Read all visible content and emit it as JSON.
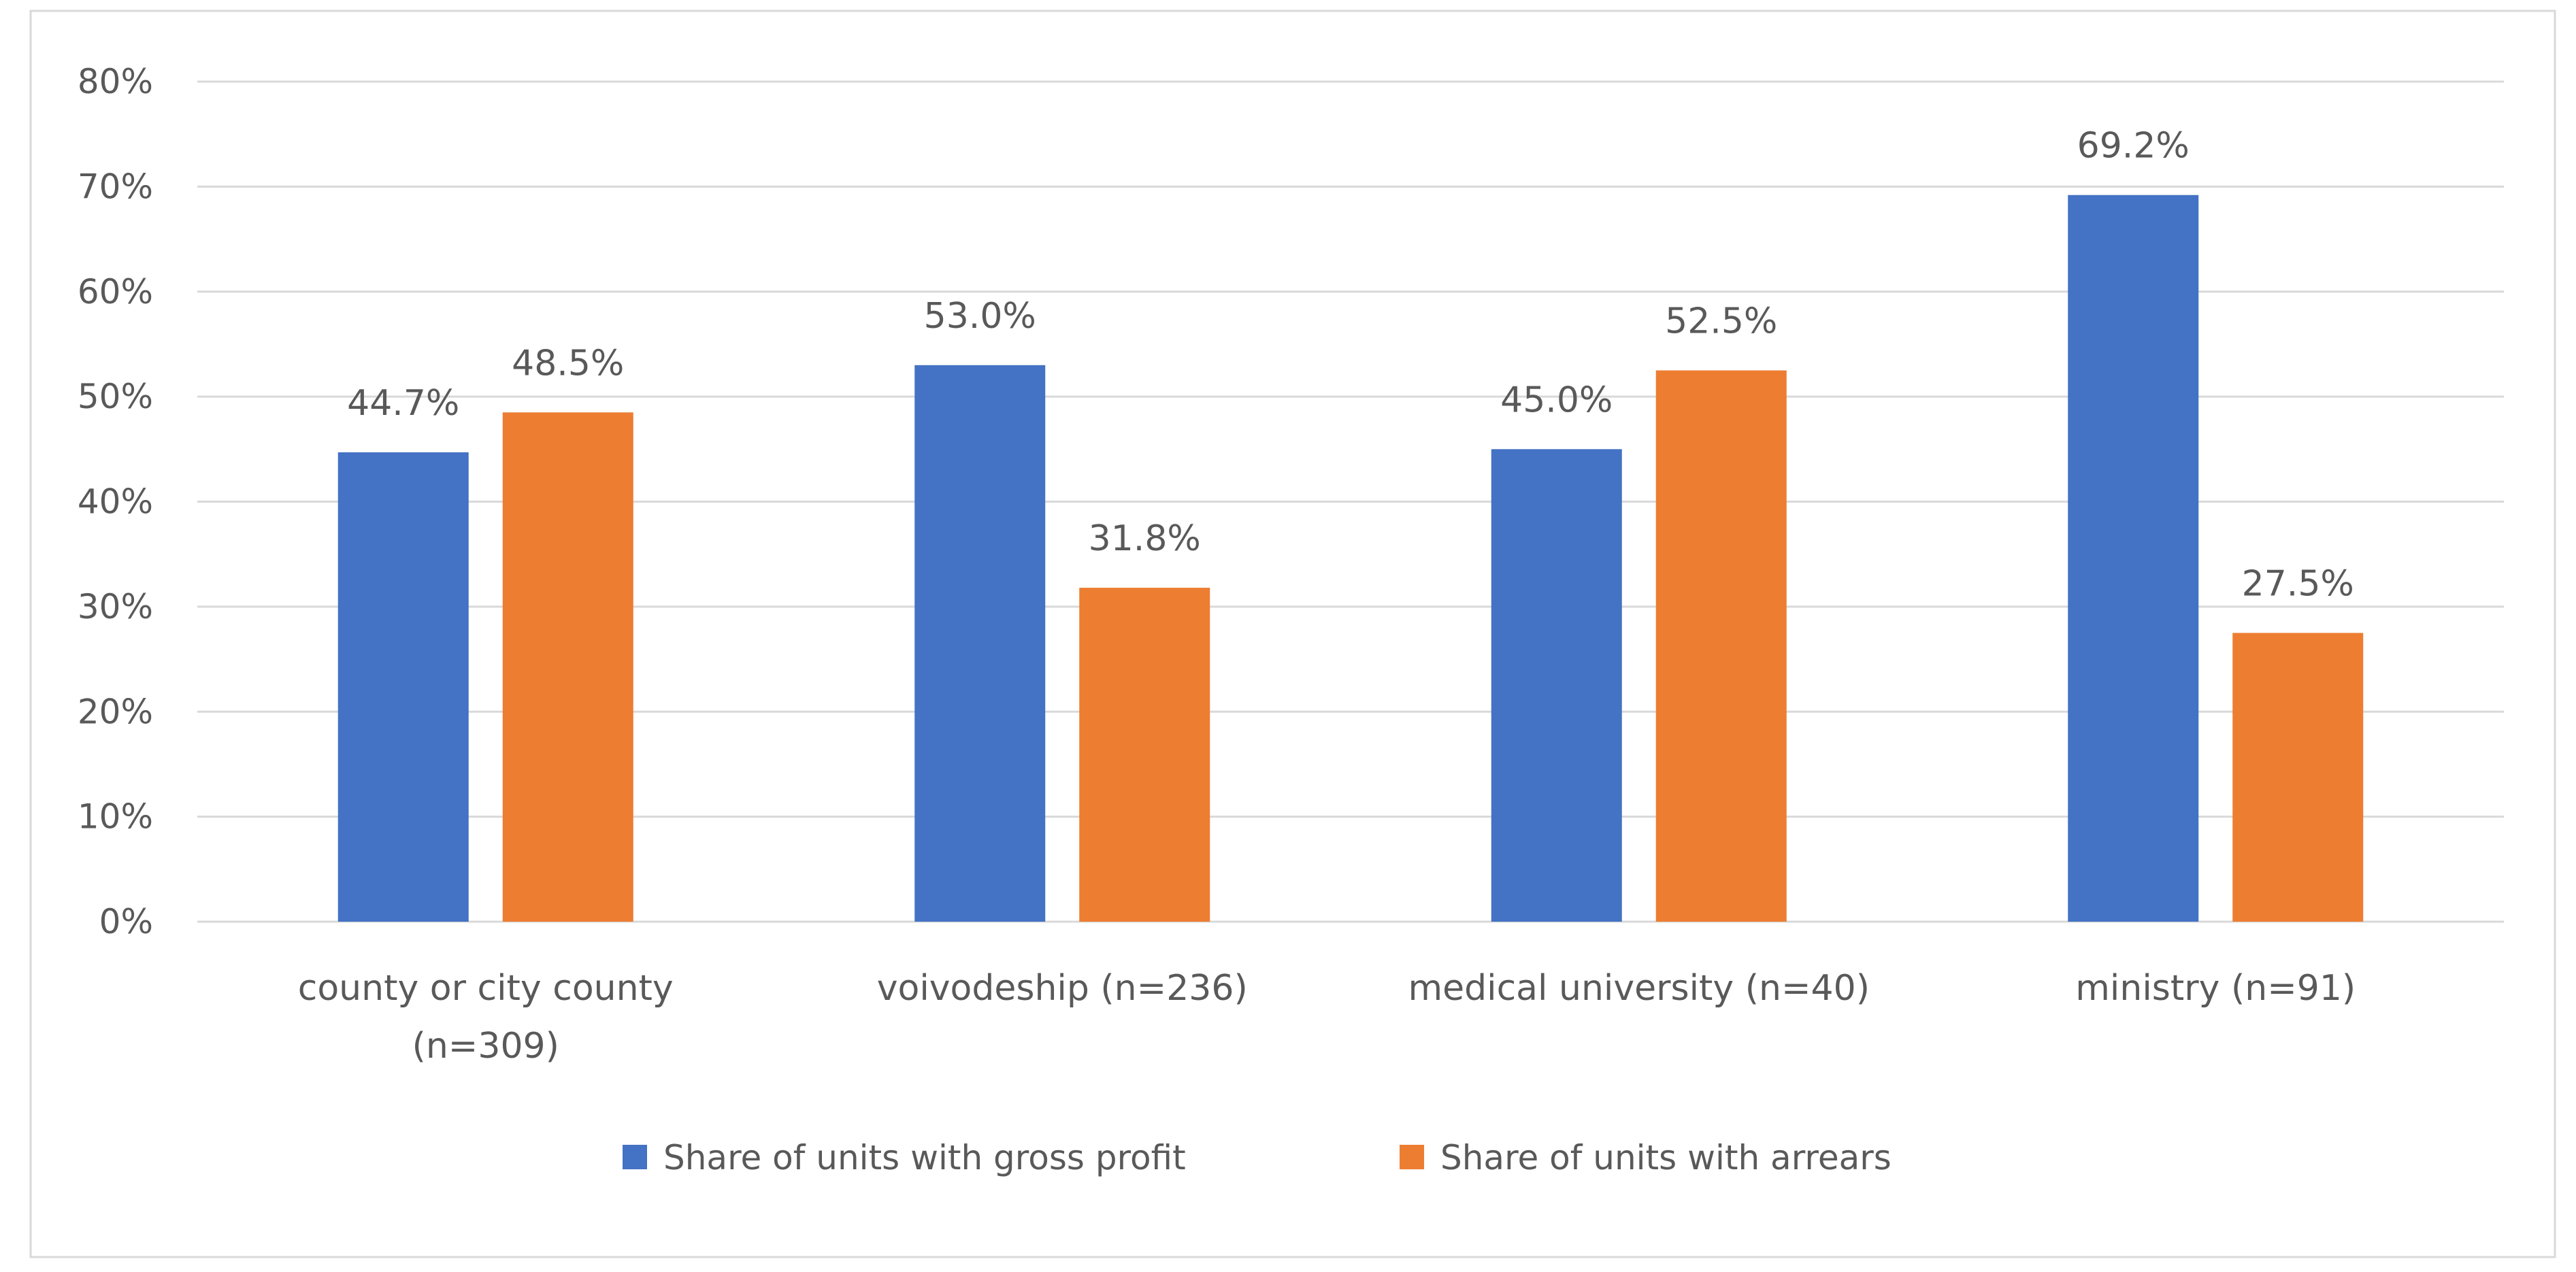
{
  "chart_data": {
    "type": "bar",
    "title": "",
    "xlabel": "",
    "ylabel": "",
    "ylim": [
      0,
      80
    ],
    "y_ticks": [
      "0%",
      "10%",
      "20%",
      "30%",
      "40%",
      "50%",
      "60%",
      "70%",
      "80%"
    ],
    "y_tick_values": [
      0,
      10,
      20,
      30,
      40,
      50,
      60,
      70,
      80
    ],
    "grid": true,
    "legend_position": "bottom",
    "categories": [
      [
        "county or city county",
        "(n=309)"
      ],
      [
        "voivodeship (n=236)"
      ],
      [
        "medical university (n=40)"
      ],
      [
        "ministry (n=91)"
      ]
    ],
    "series": [
      {
        "name": "Share of units with gross profit",
        "color": "#4472C4",
        "values": [
          44.7,
          53.0,
          45.0,
          69.2
        ],
        "labels": [
          "44.7%",
          "53.0%",
          "45.0%",
          "69.2%"
        ]
      },
      {
        "name": "Share of units with arrears",
        "color": "#ED7D31",
        "values": [
          48.5,
          31.8,
          52.5,
          27.5
        ],
        "labels": [
          "48.5%",
          "31.8%",
          "52.5%",
          "27.5%"
        ]
      }
    ]
  }
}
